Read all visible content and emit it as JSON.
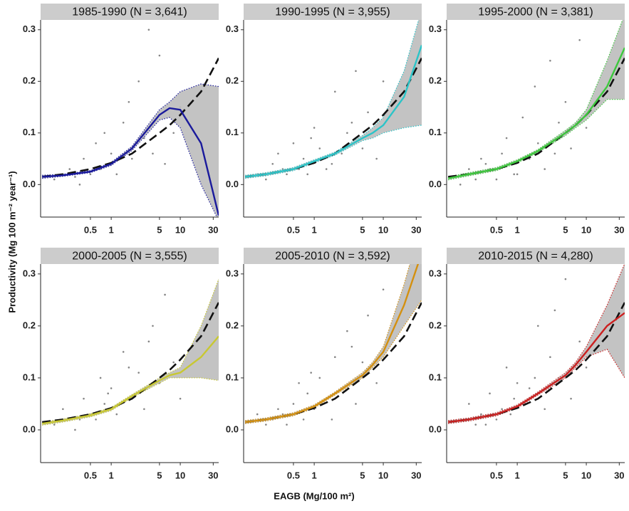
{
  "axis_labels": {
    "x": "EAGB (Mg/100 m²)",
    "y": "Productivity (Mg 100 m⁻² year⁻¹)"
  },
  "chart_data": [
    {
      "type": "line",
      "title": "1985-1990 (N = 3,641)",
      "color": "#1a1a9c",
      "xlog": true,
      "xlim": [
        0.095,
        36
      ],
      "ylim": [
        -0.063,
        0.319
      ],
      "xticks": [
        0.5,
        1,
        5,
        10,
        30
      ],
      "yticks": [
        {
          "value": 0,
          "label": "0.0"
        },
        0.1,
        0.2,
        0.3
      ],
      "x": [
        0.1,
        0.2,
        0.5,
        1,
        2,
        5,
        7,
        10,
        20,
        36
      ],
      "fit": [
        0.015,
        0.018,
        0.025,
        0.04,
        0.07,
        0.135,
        0.148,
        0.145,
        0.08,
        -0.06
      ],
      "ci_lower": [
        0.012,
        0.016,
        0.023,
        0.037,
        0.066,
        0.125,
        0.13,
        0.11,
        0.0,
        -0.07
      ],
      "ci_upper": [
        0.018,
        0.02,
        0.027,
        0.043,
        0.074,
        0.145,
        0.16,
        0.18,
        0.195,
        0.19
      ],
      "reference": [
        0.015,
        0.02,
        0.03,
        0.042,
        0.06,
        0.1,
        0.115,
        0.135,
        0.18,
        0.245
      ],
      "points": {
        "x": [
          0.15,
          0.2,
          0.25,
          0.3,
          0.4,
          0.5,
          0.6,
          0.7,
          0.8,
          1,
          1.2,
          1.5,
          2,
          2.5,
          3,
          4,
          5,
          6,
          8,
          10,
          0.35,
          0.9,
          1.8,
          3.5
        ],
        "y": [
          0.01,
          0.02,
          0.03,
          0.015,
          0.05,
          0.02,
          0.08,
          0.03,
          0.1,
          0.06,
          0.02,
          0.12,
          0.05,
          0.2,
          0.09,
          0.06,
          0.25,
          0.04,
          0.1,
          0.15,
          0.0,
          0.04,
          0.16,
          0.3
        ]
      }
    },
    {
      "type": "line",
      "title": "1990-1995 (N = 3,955)",
      "color": "#2bc4c8",
      "xlog": true,
      "xlim": [
        0.095,
        36
      ],
      "ylim": [
        -0.063,
        0.319
      ],
      "xticks": [
        0.5,
        1,
        5,
        10,
        30
      ],
      "yticks": [
        {
          "value": 0,
          "label": "0.0"
        },
        0.1,
        0.2,
        0.3
      ],
      "x": [
        0.1,
        0.2,
        0.5,
        1,
        2,
        5,
        7,
        10,
        20,
        36
      ],
      "fit": [
        0.015,
        0.02,
        0.03,
        0.045,
        0.06,
        0.09,
        0.1,
        0.115,
        0.17,
        0.27
      ],
      "ci_lower": [
        0.012,
        0.017,
        0.027,
        0.042,
        0.057,
        0.085,
        0.09,
        0.1,
        0.11,
        0.115
      ],
      "ci_upper": [
        0.018,
        0.023,
        0.033,
        0.048,
        0.063,
        0.095,
        0.11,
        0.13,
        0.22,
        0.34
      ],
      "reference": [
        0.015,
        0.02,
        0.03,
        0.042,
        0.06,
        0.1,
        0.115,
        0.135,
        0.18,
        0.245
      ],
      "points": {
        "x": [
          0.15,
          0.2,
          0.25,
          0.3,
          0.4,
          0.5,
          0.6,
          0.7,
          0.8,
          1,
          1.2,
          1.5,
          2,
          2.5,
          3,
          4,
          5,
          6,
          8,
          10,
          0.35,
          0.9,
          1.8,
          3.5
        ],
        "y": [
          0.02,
          0.01,
          0.04,
          0.06,
          0.02,
          0.08,
          0.03,
          0.05,
          0.02,
          0.11,
          0.07,
          0.03,
          0.18,
          0.06,
          0.1,
          0.22,
          0.07,
          0.14,
          0.05,
          0.2,
          0.03,
          0.09,
          0.04,
          0.12
        ]
      }
    },
    {
      "type": "line",
      "title": "1995-2000 (N = 3,381)",
      "color": "#3cc83c",
      "xlog": true,
      "xlim": [
        0.095,
        36
      ],
      "ylim": [
        -0.063,
        0.319
      ],
      "xticks": [
        0.5,
        1,
        5,
        10,
        30
      ],
      "yticks": [
        {
          "value": 0,
          "label": "0.0"
        },
        0.1,
        0.2,
        0.3
      ],
      "x": [
        0.1,
        0.2,
        0.5,
        1,
        2,
        5,
        7,
        10,
        20,
        36
      ],
      "fit": [
        0.012,
        0.02,
        0.03,
        0.045,
        0.065,
        0.1,
        0.115,
        0.135,
        0.19,
        0.265
      ],
      "ci_lower": [
        0.009,
        0.017,
        0.027,
        0.042,
        0.062,
        0.095,
        0.11,
        0.125,
        0.165,
        0.165
      ],
      "ci_upper": [
        0.015,
        0.023,
        0.033,
        0.048,
        0.068,
        0.105,
        0.12,
        0.145,
        0.24,
        0.33
      ],
      "reference": [
        0.015,
        0.02,
        0.03,
        0.042,
        0.06,
        0.1,
        0.115,
        0.135,
        0.18,
        0.245
      ],
      "points": {
        "x": [
          0.15,
          0.2,
          0.25,
          0.3,
          0.4,
          0.5,
          0.6,
          0.7,
          0.8,
          1,
          1.2,
          1.5,
          2,
          2.5,
          3,
          4,
          5,
          6,
          8,
          10,
          0.35,
          0.9,
          1.8,
          3.5
        ],
        "y": [
          0.0,
          0.03,
          0.01,
          0.05,
          0.03,
          0.01,
          0.06,
          0.09,
          0.04,
          0.02,
          0.13,
          0.05,
          0.08,
          0.03,
          0.24,
          0.12,
          0.16,
          0.07,
          0.28,
          0.11,
          0.04,
          0.02,
          0.19,
          0.06
        ]
      }
    },
    {
      "type": "line",
      "title": "2000-2005 (N = 3,555)",
      "color": "#c8c832",
      "xlog": true,
      "xlim": [
        0.095,
        36
      ],
      "ylim": [
        -0.063,
        0.319
      ],
      "xticks": [
        0.5,
        1,
        5,
        10,
        30
      ],
      "yticks": [
        {
          "value": 0,
          "label": "0.0"
        },
        0.1,
        0.2,
        0.3
      ],
      "x": [
        0.1,
        0.2,
        0.5,
        1,
        2,
        5,
        7,
        10,
        20,
        36
      ],
      "fit": [
        0.012,
        0.018,
        0.028,
        0.04,
        0.065,
        0.095,
        0.105,
        0.11,
        0.14,
        0.18
      ],
      "ci_lower": [
        0.009,
        0.015,
        0.025,
        0.037,
        0.062,
        0.09,
        0.1,
        0.1,
        0.1,
        0.095
      ],
      "ci_upper": [
        0.015,
        0.021,
        0.031,
        0.043,
        0.068,
        0.1,
        0.11,
        0.12,
        0.2,
        0.29
      ],
      "reference": [
        0.015,
        0.02,
        0.03,
        0.042,
        0.06,
        0.1,
        0.115,
        0.135,
        0.18,
        0.245
      ],
      "points": {
        "x": [
          0.15,
          0.2,
          0.25,
          0.3,
          0.4,
          0.5,
          0.6,
          0.7,
          0.8,
          1,
          1.2,
          1.5,
          2,
          2.5,
          3,
          4,
          5,
          6,
          8,
          10,
          0.35,
          0.9,
          1.8,
          3.5
        ],
        "y": [
          0.01,
          0.04,
          0.02,
          0.0,
          0.06,
          0.03,
          0.02,
          0.1,
          0.05,
          0.08,
          0.03,
          0.15,
          0.06,
          0.11,
          0.04,
          0.2,
          0.09,
          0.26,
          0.13,
          0.06,
          0.02,
          0.07,
          0.12,
          0.17
        ]
      }
    },
    {
      "type": "line",
      "title": "2005-2010 (N = 3,592)",
      "color": "#d4900f",
      "xlog": true,
      "xlim": [
        0.095,
        36
      ],
      "ylim": [
        -0.063,
        0.319
      ],
      "xticks": [
        0.5,
        1,
        5,
        10,
        30
      ],
      "yticks": [
        {
          "value": 0,
          "label": "0.0"
        },
        0.1,
        0.2,
        0.3
      ],
      "x": [
        0.1,
        0.2,
        0.5,
        1,
        2,
        5,
        7,
        10,
        20,
        36
      ],
      "fit": [
        0.015,
        0.02,
        0.03,
        0.045,
        0.07,
        0.105,
        0.125,
        0.15,
        0.24,
        0.34
      ],
      "ci_lower": [
        0.012,
        0.017,
        0.027,
        0.042,
        0.067,
        0.1,
        0.12,
        0.14,
        0.2,
        0.25
      ],
      "ci_upper": [
        0.018,
        0.023,
        0.033,
        0.048,
        0.073,
        0.11,
        0.13,
        0.16,
        0.28,
        0.4
      ],
      "reference": [
        0.015,
        0.02,
        0.03,
        0.042,
        0.06,
        0.1,
        0.115,
        0.135,
        0.18,
        0.245
      ],
      "points": {
        "x": [
          0.15,
          0.2,
          0.25,
          0.3,
          0.4,
          0.5,
          0.6,
          0.7,
          0.8,
          1,
          1.2,
          1.5,
          2,
          2.5,
          3,
          4,
          5,
          6,
          8,
          10,
          0.35,
          0.9,
          1.8,
          3.5
        ],
        "y": [
          0.03,
          0.01,
          0.02,
          0.04,
          0.01,
          0.05,
          0.09,
          0.02,
          0.07,
          0.04,
          0.1,
          0.06,
          0.14,
          0.08,
          0.19,
          0.05,
          0.13,
          0.22,
          0.09,
          0.27,
          0.03,
          0.11,
          0.02,
          0.16
        ]
      }
    },
    {
      "type": "line",
      "title": "2010-2015 (N = 4,280)",
      "color": "#cc1f1f",
      "xlog": true,
      "xlim": [
        0.095,
        36
      ],
      "ylim": [
        -0.063,
        0.319
      ],
      "xticks": [
        0.5,
        1,
        5,
        10,
        30
      ],
      "yticks": [
        {
          "value": 0,
          "label": "0.0"
        },
        0.1,
        0.2,
        0.3
      ],
      "x": [
        0.1,
        0.2,
        0.5,
        1,
        2,
        5,
        7,
        10,
        20,
        36
      ],
      "fit": [
        0.015,
        0.02,
        0.03,
        0.045,
        0.07,
        0.105,
        0.125,
        0.15,
        0.2,
        0.225
      ],
      "ci_lower": [
        0.012,
        0.017,
        0.027,
        0.042,
        0.067,
        0.1,
        0.12,
        0.14,
        0.155,
        0.1
      ],
      "ci_upper": [
        0.018,
        0.023,
        0.033,
        0.048,
        0.073,
        0.11,
        0.13,
        0.16,
        0.24,
        0.32
      ],
      "reference": [
        0.015,
        0.02,
        0.03,
        0.042,
        0.06,
        0.1,
        0.115,
        0.135,
        0.18,
        0.245
      ],
      "points": {
        "x": [
          0.15,
          0.2,
          0.25,
          0.3,
          0.4,
          0.5,
          0.6,
          0.7,
          0.8,
          1,
          1.2,
          1.5,
          2,
          2.5,
          3,
          4,
          5,
          6,
          8,
          10,
          0.35,
          0.9,
          1.8,
          3.5
        ],
        "y": [
          0.02,
          0.05,
          0.01,
          0.03,
          0.07,
          0.02,
          0.04,
          0.12,
          0.03,
          0.09,
          0.05,
          0.08,
          0.2,
          0.04,
          0.14,
          0.1,
          0.29,
          0.06,
          0.17,
          0.12,
          0.01,
          0.06,
          0.1,
          0.23
        ]
      }
    }
  ]
}
